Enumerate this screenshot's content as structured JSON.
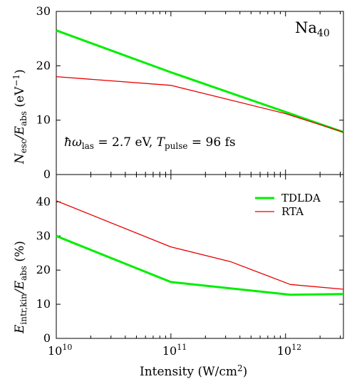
{
  "chart_data": [
    {
      "type": "line",
      "panel": "top",
      "annotation_top_right_base": "Na",
      "annotation_top_right_sub": "40",
      "ylabel": {
        "main": "N",
        "sub1": "esc",
        "mid": "/E",
        "sub2": "abs",
        "unit": " (eV",
        "unit_sup": "−1",
        "unit_end": ")"
      },
      "inset": {
        "a": "ħω",
        "a_sub": "las",
        "b": " = 2.7 eV, ",
        "c": "T",
        "c_sub": "pulse",
        "d": " = 96 fs"
      },
      "xscale": "log",
      "xlim": [
        10000000000.0,
        3200000000000.0
      ],
      "ylim": [
        0,
        30
      ],
      "yticks": [
        0,
        10,
        20,
        30
      ],
      "series": [
        {
          "name": "TDLDA",
          "color": "#00ee00",
          "x": [
            10000000000.0,
            100000000000.0,
            1000000000000.0,
            3200000000000.0
          ],
          "y": [
            26.5,
            18.8,
            11.5,
            7.8
          ]
        },
        {
          "name": "RTA",
          "color": "#e80000",
          "x": [
            10000000000.0,
            100000000000.0,
            1000000000000.0,
            3200000000000.0
          ],
          "y": [
            18.0,
            16.4,
            11.2,
            7.8
          ]
        }
      ]
    },
    {
      "type": "line",
      "panel": "bottom",
      "ylabel": {
        "main": "E",
        "sub1": "intr,kin",
        "mid": "/E",
        "sub2": "abs",
        "unit": " (%)"
      },
      "xlabel": {
        "main": "Intensity (W/cm",
        "sup": "2",
        "end": ")"
      },
      "xscale": "log",
      "xlim": [
        10000000000.0,
        3200000000000.0
      ],
      "ylim": [
        0,
        48
      ],
      "yticks": [
        0,
        10,
        20,
        30,
        40
      ],
      "xticks": [
        {
          "value": 10000000000.0,
          "base": "10",
          "exp": "10"
        },
        {
          "value": 100000000000.0,
          "base": "10",
          "exp": "11"
        },
        {
          "value": 1000000000000.0,
          "base": "10",
          "exp": "12"
        }
      ],
      "legend": {
        "placement": "top-right",
        "entries": [
          "TDLDA",
          "RTA"
        ]
      },
      "series": [
        {
          "name": "TDLDA",
          "color": "#00ee00",
          "x": [
            10000000000.0,
            100000000000.0,
            1100000000000.0,
            3200000000000.0
          ],
          "y": [
            30.0,
            16.5,
            12.8,
            13.0
          ]
        },
        {
          "name": "RTA",
          "color": "#e80000",
          "x": [
            10000000000.0,
            100000000000.0,
            330000000000.0,
            1100000000000.0,
            3200000000000.0
          ],
          "y": [
            40.3,
            26.8,
            22.5,
            15.8,
            14.4
          ]
        }
      ]
    }
  ]
}
